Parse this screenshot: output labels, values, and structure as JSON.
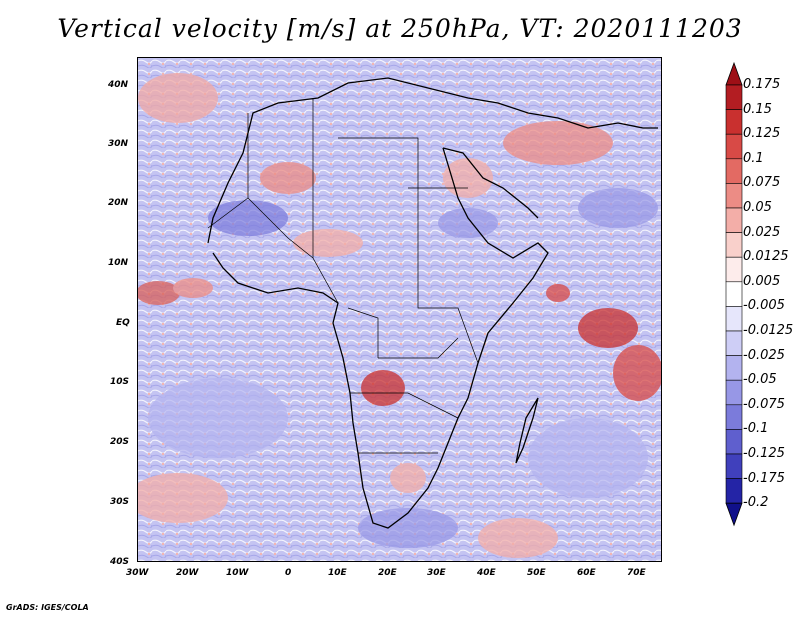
{
  "title": "Vertical velocity [m/s] at 250hPa, VT: 2020111203",
  "footer": "GrADS: IGES/COLA",
  "map": {
    "lat_labels": [
      "40N",
      "30N",
      "20N",
      "10N",
      "EQ",
      "10S",
      "20S",
      "30S",
      "40S"
    ],
    "lon_labels": [
      "30W",
      "20W",
      "10W",
      "0",
      "10E",
      "20E",
      "30E",
      "40E",
      "50E",
      "60E",
      "70E"
    ],
    "extent": {
      "lon_min": -30,
      "lon_max": 75,
      "lat_min": -40,
      "lat_max": 44
    }
  },
  "colorbar": {
    "labels": [
      "0.175",
      "0.15",
      "0.125",
      "0.1",
      "0.075",
      "0.05",
      "0.025",
      "0.0125",
      "0.005",
      "-0.005",
      "-0.0125",
      "-0.025",
      "-0.05",
      "-0.075",
      "-0.1",
      "-0.125",
      "-0.175",
      "-0.2"
    ],
    "colors": [
      "#9e0f16",
      "#b31d22",
      "#c9302f",
      "#d84a46",
      "#e36a63",
      "#ec8c85",
      "#f3aea8",
      "#f9d0cb",
      "#fdeceb",
      "#ffffff",
      "#e6e6fb",
      "#ceceF6",
      "#b3b3ef",
      "#9797e6",
      "#7b7bdb",
      "#5f5fce",
      "#4040bc",
      "#2424a6",
      "#10108a"
    ]
  }
}
